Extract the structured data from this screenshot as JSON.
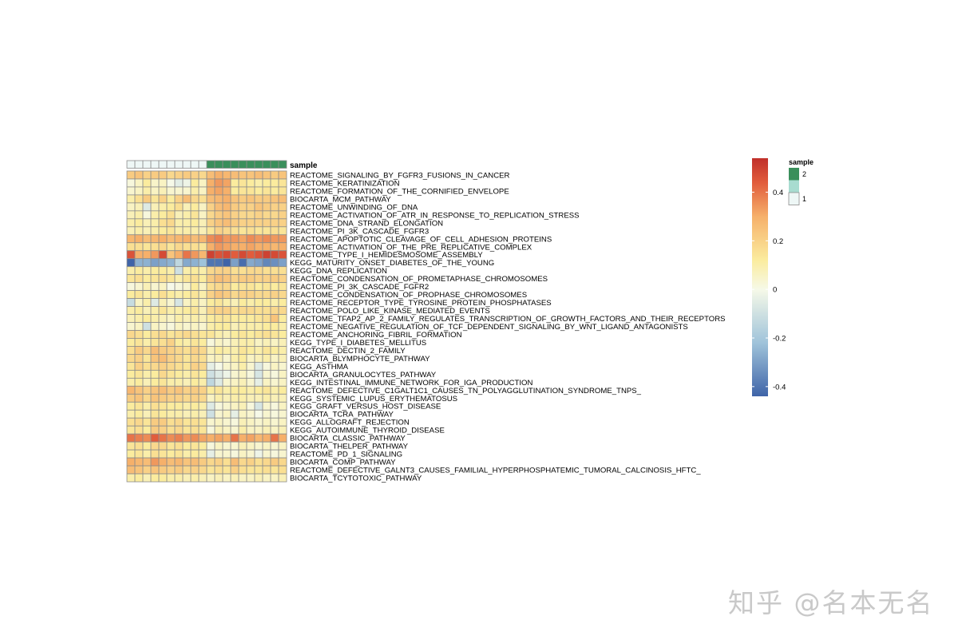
{
  "chart_data": {
    "type": "heatmap",
    "annotation": {
      "label": "sample",
      "levels": [
        "1",
        "2"
      ],
      "colors": {
        "1": "#eef7f6",
        "2": "#3a8f5b"
      },
      "mid_color": "#a8dcd0",
      "columns": [
        "1",
        "1",
        "1",
        "1",
        "1",
        "1",
        "1",
        "1",
        "1",
        "1",
        "2",
        "2",
        "2",
        "2",
        "2",
        "2",
        "2",
        "2",
        "2",
        "2"
      ]
    },
    "legend": {
      "title": "sample",
      "ticks": [
        0.4,
        0.2,
        0,
        -0.2,
        -0.4
      ],
      "tick_labels": [
        "0.4",
        "0.2",
        "0",
        "-0.2",
        "-0.4"
      ],
      "range": [
        -0.44,
        0.54
      ],
      "stops": [
        {
          "v": -0.44,
          "c": "#3f64a8"
        },
        {
          "v": -0.22,
          "c": "#9fc3da"
        },
        {
          "v": 0.0,
          "c": "#f6f9e8"
        },
        {
          "v": 0.12,
          "c": "#fbec9e"
        },
        {
          "v": 0.3,
          "c": "#f6b06a"
        },
        {
          "v": 0.44,
          "c": "#e15c3c"
        },
        {
          "v": 0.54,
          "c": "#c0302b"
        }
      ]
    },
    "rows": [
      "REACTOME_SIGNALING_BY_FGFR3_FUSIONS_IN_CANCER",
      "REACTOME_KERATINIZATION",
      "REACTOME_FORMATION_OF_THE_CORNIFIED_ENVELOPE",
      "BIOCARTA_MCM_PATHWAY",
      "REACTOME_UNWINDING_OF_DNA",
      "REACTOME_ACTIVATION_OF_ATR_IN_RESPONSE_TO_REPLICATION_STRESS",
      "REACTOME_DNA_STRAND_ELONGATION",
      "REACTOME_PI_3K_CASCADE_FGFR3",
      "REACTOME_APOPTOTIC_CLEAVAGE_OF_CELL_ADHESION_PROTEINS",
      "REACTOME_ACTIVATION_OF_THE_PRE_REPLICATIVE_COMPLEX",
      "REACTOME_TYPE_I_HEMIDESMOSOME_ASSEMBLY",
      "KEGG_MATURITY_ONSET_DIABETES_OF_THE_YOUNG",
      "KEGG_DNA_REPLICATION",
      "REACTOME_CONDENSATION_OF_PROMETAPHASE_CHROMOSOMES",
      "REACTOME_PI_3K_CASCADE_FGFR2",
      "REACTOME_CONDENSATION_OF_PROPHASE_CHROMOSOMES",
      "REACTOME_RECEPTOR_TYPE_TYROSINE_PROTEIN_PHOSPHATASES",
      "REACTOME_POLO_LIKE_KINASE_MEDIATED_EVENTS",
      "REACTOME_TFAP2_AP_2_FAMILY_REGULATES_TRANSCRIPTION_OF_GROWTH_FACTORS_AND_THEIR_RECEPTORS",
      "REACTOME_NEGATIVE_REGULATION_OF_TCF_DEPENDENT_SIGNALING_BY_WNT_LIGAND_ANTAGONISTS",
      "REACTOME_ANCHORING_FIBRIL_FORMATION",
      "KEGG_TYPE_I_DIABETES_MELLITUS",
      "REACTOME_DECTIN_2_FAMILY",
      "BIOCARTA_BLYMPHOCYTE_PATHWAY",
      "KEGG_ASTHMA",
      "BIOCARTA_GRANULOCYTES_PATHWAY",
      "KEGG_INTESTINAL_IMMUNE_NETWORK_FOR_IGA_PRODUCTION",
      "REACTOME_DEFECTIVE_C1GALT1C1_CAUSES_TN_POLYAGGLUTINATION_SYNDROME_TNPS_",
      "KEGG_SYSTEMIC_LUPUS_ERYTHEMATOSUS",
      "KEGG_GRAFT_VERSUS_HOST_DISEASE",
      "BIOCARTA_TCRA_PATHWAY",
      "KEGG_ALLOGRAFT_REJECTION",
      "KEGG_AUTOIMMUNE_THYROID_DISEASE",
      "BIOCARTA_CLASSIC_PATHWAY",
      "BIOCARTA_THELPER_PATHWAY",
      "REACTOME_PD_1_SIGNALING",
      "BIOCARTA_COMP_PATHWAY",
      "REACTOME_DEFECTIVE_GALNT3_CAUSES_FAMILIAL_HYPERPHOSPHATEMIC_TUMORAL_CALCINOSIS_HFTC_",
      "BIOCARTA_TCYTOTOXIC_PATHWAY"
    ],
    "values": [
      [
        0.22,
        0.24,
        0.2,
        0.22,
        0.22,
        0.18,
        0.2,
        0.22,
        0.2,
        0.18,
        0.26,
        0.3,
        0.28,
        0.26,
        0.24,
        0.24,
        0.26,
        0.24,
        0.22,
        0.24
      ],
      [
        0.02,
        0.06,
        0.12,
        0.05,
        0.06,
        0.0,
        -0.05,
        -0.02,
        0.12,
        0.06,
        0.3,
        0.34,
        0.32,
        0.12,
        0.14,
        0.12,
        0.1,
        0.12,
        0.12,
        0.14
      ],
      [
        0.04,
        0.06,
        0.1,
        0.06,
        0.08,
        0.04,
        0.04,
        0.04,
        0.1,
        0.06,
        0.3,
        0.32,
        0.3,
        0.12,
        0.14,
        0.14,
        0.12,
        0.14,
        0.12,
        0.14
      ],
      [
        0.1,
        0.16,
        0.22,
        0.14,
        0.2,
        0.12,
        0.2,
        0.26,
        0.18,
        0.16,
        0.26,
        0.28,
        0.3,
        0.24,
        0.22,
        0.24,
        0.22,
        0.22,
        0.24,
        0.26
      ],
      [
        0.06,
        0.08,
        -0.06,
        0.08,
        0.1,
        0.12,
        0.16,
        0.08,
        0.12,
        0.06,
        0.2,
        0.26,
        0.28,
        0.22,
        0.2,
        0.2,
        0.24,
        0.22,
        0.2,
        0.2
      ],
      [
        0.08,
        0.1,
        0.02,
        0.1,
        0.12,
        0.16,
        0.08,
        0.1,
        0.14,
        0.06,
        0.18,
        0.22,
        0.24,
        0.2,
        0.18,
        0.18,
        0.2,
        0.18,
        0.18,
        0.2
      ],
      [
        0.1,
        0.12,
        0.08,
        0.1,
        0.16,
        0.18,
        0.1,
        0.1,
        0.12,
        0.08,
        0.2,
        0.24,
        0.26,
        0.22,
        0.2,
        0.2,
        0.2,
        0.2,
        0.2,
        0.2
      ],
      [
        0.08,
        0.1,
        0.08,
        0.1,
        0.12,
        0.14,
        0.1,
        0.1,
        0.1,
        0.08,
        0.14,
        0.2,
        0.18,
        0.16,
        0.14,
        0.16,
        0.14,
        0.14,
        0.16,
        0.14
      ],
      [
        0.28,
        0.3,
        0.26,
        0.28,
        0.3,
        0.26,
        0.28,
        0.3,
        0.26,
        0.28,
        0.36,
        0.38,
        0.34,
        0.34,
        0.32,
        0.36,
        0.34,
        0.36,
        0.34,
        0.34
      ],
      [
        0.16,
        0.16,
        0.14,
        0.16,
        0.18,
        0.14,
        0.18,
        0.16,
        0.16,
        0.14,
        0.3,
        0.34,
        0.32,
        0.3,
        0.3,
        0.32,
        0.3,
        0.3,
        0.28,
        0.3
      ],
      [
        0.46,
        0.3,
        0.3,
        0.34,
        0.48,
        0.24,
        0.3,
        0.4,
        0.34,
        0.28,
        0.5,
        0.46,
        0.48,
        0.44,
        0.48,
        0.44,
        0.46,
        0.5,
        0.48,
        0.46
      ],
      [
        -0.44,
        -0.26,
        -0.26,
        -0.3,
        -0.28,
        -0.26,
        -0.14,
        -0.28,
        -0.26,
        -0.22,
        -0.4,
        -0.4,
        -0.44,
        -0.3,
        -0.42,
        -0.28,
        -0.3,
        -0.36,
        -0.34,
        -0.3
      ],
      [
        0.1,
        0.12,
        0.1,
        0.12,
        0.12,
        0.1,
        -0.1,
        0.1,
        0.12,
        0.1,
        0.18,
        0.2,
        0.2,
        0.16,
        0.16,
        0.18,
        0.18,
        0.16,
        0.16,
        0.16
      ],
      [
        0.14,
        0.16,
        0.12,
        0.14,
        0.16,
        0.14,
        0.1,
        0.14,
        0.16,
        0.12,
        0.22,
        0.26,
        0.24,
        0.2,
        0.22,
        0.22,
        0.2,
        0.2,
        0.22,
        0.2
      ],
      [
        0.02,
        0.04,
        0.08,
        0.04,
        0.06,
        0.0,
        0.02,
        0.04,
        0.12,
        0.06,
        0.16,
        0.18,
        0.18,
        0.12,
        0.14,
        0.14,
        0.12,
        0.14,
        0.12,
        0.14
      ],
      [
        0.12,
        0.14,
        0.1,
        0.12,
        0.16,
        0.12,
        0.1,
        0.12,
        0.14,
        0.1,
        0.2,
        0.24,
        0.22,
        0.18,
        0.2,
        0.2,
        0.18,
        0.18,
        0.2,
        0.18
      ],
      [
        -0.12,
        0.06,
        0.1,
        -0.06,
        0.08,
        0.04,
        -0.08,
        0.06,
        0.1,
        0.06,
        0.12,
        0.14,
        0.1,
        0.08,
        0.12,
        0.1,
        0.12,
        0.12,
        0.1,
        0.12
      ],
      [
        0.1,
        0.12,
        0.08,
        0.1,
        0.14,
        0.1,
        0.1,
        0.12,
        0.14,
        0.08,
        0.18,
        0.2,
        0.2,
        0.16,
        0.18,
        0.18,
        0.16,
        0.16,
        0.18,
        0.18
      ],
      [
        0.08,
        0.1,
        0.12,
        0.1,
        0.08,
        0.06,
        0.1,
        0.08,
        0.1,
        0.08,
        0.12,
        0.14,
        0.14,
        0.12,
        0.12,
        0.12,
        0.14,
        0.16,
        0.24,
        0.12
      ],
      [
        0.04,
        0.06,
        -0.1,
        0.06,
        0.04,
        0.02,
        0.06,
        0.04,
        0.06,
        0.04,
        0.1,
        0.12,
        0.12,
        0.08,
        0.1,
        0.1,
        0.1,
        0.12,
        0.12,
        0.1
      ],
      [
        0.18,
        0.16,
        0.12,
        0.16,
        0.18,
        0.14,
        0.16,
        0.18,
        0.16,
        0.14,
        0.14,
        0.1,
        0.08,
        0.12,
        0.14,
        0.12,
        0.14,
        0.16,
        0.14,
        0.12
      ],
      [
        0.12,
        0.14,
        0.1,
        0.14,
        0.16,
        0.2,
        0.12,
        0.1,
        0.14,
        0.12,
        0.02,
        0.06,
        0.04,
        0.08,
        0.1,
        0.1,
        0.06,
        0.08,
        0.06,
        0.08
      ],
      [
        0.16,
        0.22,
        0.18,
        0.26,
        0.22,
        0.2,
        0.18,
        0.16,
        0.2,
        0.18,
        0.08,
        0.12,
        0.1,
        0.1,
        0.14,
        0.12,
        0.1,
        0.14,
        0.12,
        0.1
      ],
      [
        0.18,
        0.2,
        0.14,
        0.24,
        0.26,
        0.2,
        0.18,
        0.14,
        0.18,
        0.16,
        0.06,
        0.08,
        0.04,
        0.1,
        0.12,
        0.06,
        0.08,
        0.1,
        0.06,
        0.08
      ],
      [
        0.14,
        0.2,
        0.16,
        0.18,
        0.2,
        0.18,
        0.16,
        0.14,
        0.2,
        0.18,
        -0.04,
        0.0,
        0.04,
        0.06,
        0.1,
        0.04,
        -0.06,
        0.02,
        0.06,
        0.04
      ],
      [
        0.12,
        0.14,
        0.1,
        0.12,
        0.18,
        0.14,
        0.12,
        0.1,
        0.14,
        0.12,
        -0.1,
        -0.06,
        -0.02,
        0.04,
        0.06,
        0.02,
        -0.08,
        0.04,
        0.02,
        0.06
      ],
      [
        0.1,
        0.12,
        0.08,
        0.12,
        0.14,
        0.1,
        0.1,
        0.08,
        0.12,
        0.1,
        -0.14,
        -0.06,
        0.04,
        0.06,
        0.08,
        0.04,
        -0.04,
        0.06,
        0.04,
        0.06
      ],
      [
        0.28,
        0.24,
        0.2,
        0.24,
        0.26,
        0.22,
        0.24,
        0.2,
        0.22,
        0.2,
        0.12,
        0.14,
        0.1,
        0.12,
        0.12,
        0.1,
        0.12,
        0.14,
        0.1,
        0.12
      ],
      [
        0.22,
        0.24,
        0.18,
        0.24,
        0.22,
        0.2,
        0.2,
        0.18,
        0.2,
        0.18,
        0.06,
        0.1,
        0.08,
        0.1,
        0.1,
        0.08,
        0.08,
        0.1,
        0.08,
        0.08
      ],
      [
        0.12,
        0.14,
        0.1,
        0.16,
        0.14,
        0.12,
        0.12,
        0.1,
        0.12,
        0.1,
        -0.06,
        0.02,
        0.04,
        0.06,
        0.08,
        0.02,
        -0.08,
        0.04,
        0.02,
        0.06
      ],
      [
        0.1,
        0.12,
        0.08,
        0.14,
        0.12,
        0.1,
        0.1,
        0.08,
        0.1,
        0.08,
        -0.1,
        0.04,
        0.06,
        -0.04,
        0.06,
        0.04,
        0.0,
        0.04,
        0.02,
        0.04
      ],
      [
        0.16,
        0.18,
        0.14,
        0.22,
        0.22,
        0.16,
        0.18,
        0.14,
        0.16,
        0.14,
        0.04,
        0.06,
        0.04,
        0.02,
        0.08,
        0.06,
        0.04,
        0.06,
        0.04,
        0.06
      ],
      [
        0.14,
        0.16,
        0.12,
        0.22,
        0.2,
        0.16,
        0.18,
        0.14,
        0.16,
        0.14,
        0.02,
        0.08,
        0.06,
        0.04,
        0.1,
        0.06,
        0.06,
        0.08,
        0.06,
        0.08
      ],
      [
        0.4,
        0.38,
        0.36,
        0.44,
        0.4,
        0.36,
        0.38,
        0.34,
        0.36,
        0.32,
        0.3,
        0.32,
        0.3,
        0.4,
        0.3,
        0.32,
        0.28,
        0.3,
        0.4,
        0.3
      ],
      [
        0.14,
        0.16,
        0.12,
        0.18,
        0.18,
        0.14,
        0.16,
        0.12,
        0.14,
        0.12,
        0.02,
        0.06,
        0.04,
        0.04,
        0.08,
        0.06,
        0.04,
        0.06,
        0.04,
        0.06
      ],
      [
        0.12,
        0.14,
        0.1,
        0.16,
        0.14,
        0.12,
        0.14,
        0.1,
        0.12,
        0.1,
        -0.04,
        0.04,
        0.04,
        0.02,
        0.06,
        0.04,
        -0.02,
        0.04,
        0.02,
        0.04
      ],
      [
        0.3,
        0.28,
        0.26,
        0.34,
        0.3,
        0.26,
        0.28,
        0.24,
        0.26,
        0.22,
        0.18,
        0.2,
        0.16,
        0.26,
        0.18,
        0.2,
        0.16,
        0.18,
        0.22,
        0.18
      ],
      [
        0.26,
        0.24,
        0.2,
        0.24,
        0.22,
        0.2,
        0.22,
        0.18,
        0.2,
        0.18,
        0.14,
        0.16,
        0.14,
        0.2,
        0.16,
        0.14,
        0.14,
        0.16,
        0.14,
        0.16
      ],
      [
        0.1,
        0.12,
        0.08,
        0.12,
        0.12,
        0.1,
        0.1,
        0.08,
        0.1,
        0.08,
        0.06,
        0.08,
        0.06,
        0.08,
        0.06,
        0.06,
        0.08,
        0.06,
        0.06,
        0.08
      ]
    ]
  },
  "watermark": "知乎 @名本无名"
}
